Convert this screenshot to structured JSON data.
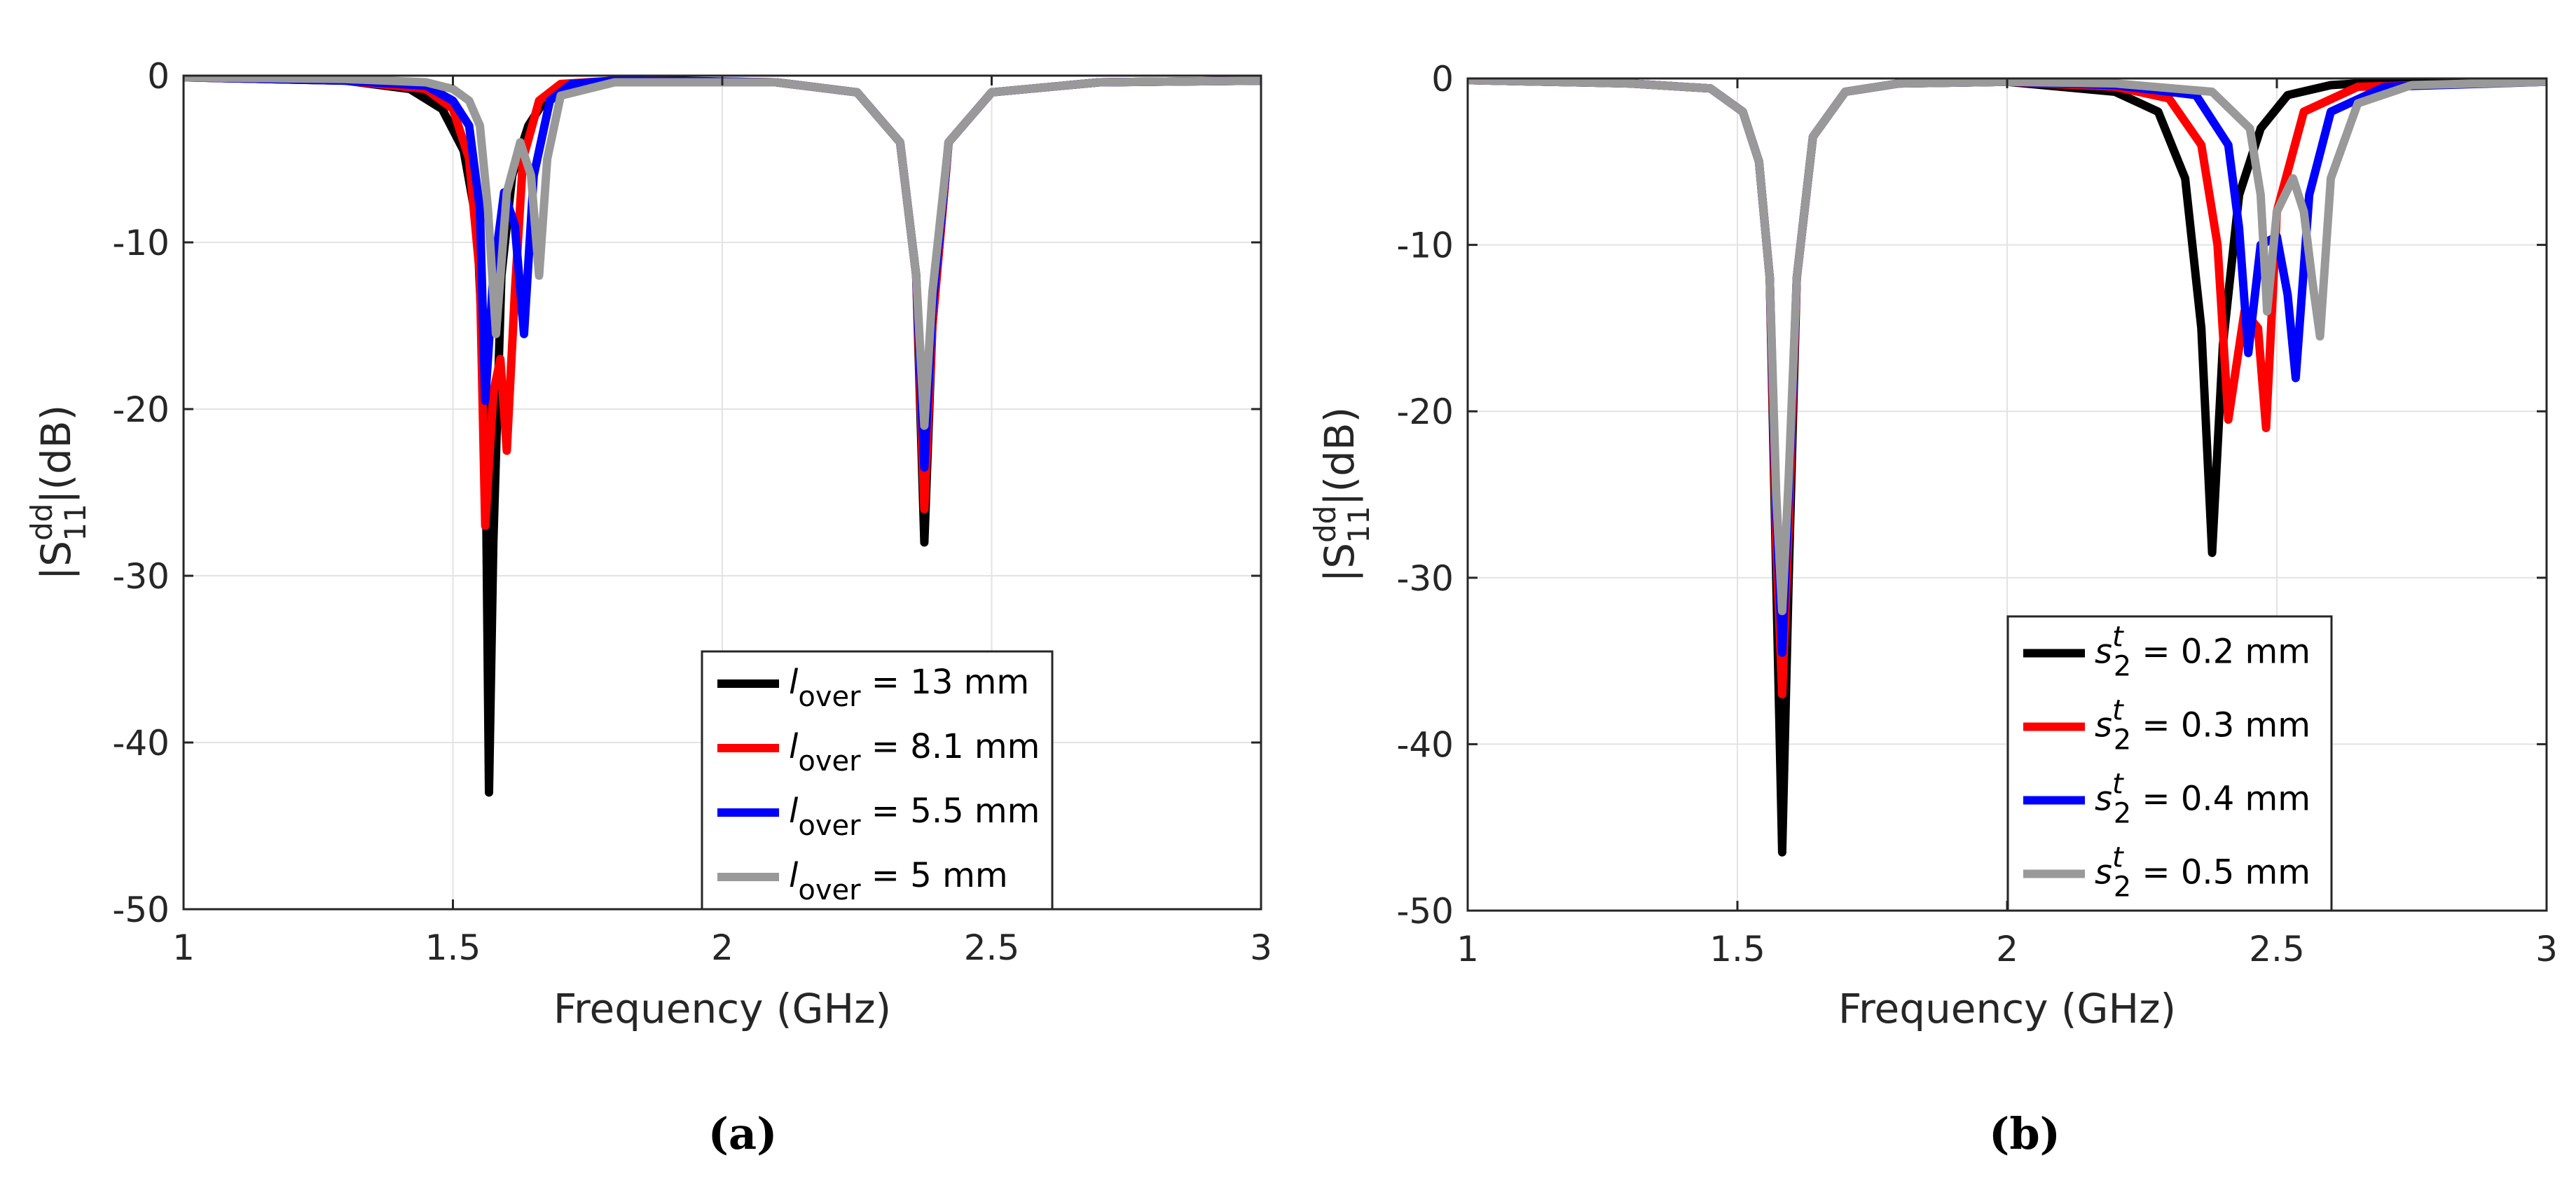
{
  "chart_data": [
    {
      "type": "line",
      "panel_label": "(a)",
      "xlabel": "Frequency (GHz)",
      "ylabel": {
        "main": "|S",
        "sup": "dd",
        "sub": "11",
        "rest": "|(dB)"
      },
      "xlim": [
        1,
        3
      ],
      "ylim": [
        -50,
        0
      ],
      "xticks": [
        1,
        1.5,
        2,
        2.5,
        3
      ],
      "xtick_labels": [
        "1",
        "1.5",
        "2",
        "2.5",
        "3"
      ],
      "yticks": [
        0,
        -10,
        -20,
        -30,
        -40,
        -50
      ],
      "ytick_labels": [
        "0",
        "-10",
        "-20",
        "-30",
        "-40",
        "-50"
      ],
      "grid": true,
      "legend_position": "lower-right",
      "series": [
        {
          "name": "l_over = 13 mm",
          "label_sym": "l",
          "label_sub": "over",
          "label_rest": " = 13 mm",
          "color": "#000000",
          "x": [
            1.0,
            1.3,
            1.42,
            1.48,
            1.52,
            1.545,
            1.56,
            1.567,
            1.575,
            1.59,
            1.61,
            1.64,
            1.68,
            1.75,
            1.9,
            2.1,
            2.25,
            2.33,
            2.36,
            2.375,
            2.39,
            2.42,
            2.5,
            2.7,
            3.0
          ],
          "y": [
            -0.1,
            -0.3,
            -0.8,
            -2.0,
            -4.5,
            -9.0,
            -20.0,
            -43.0,
            -28.0,
            -12.0,
            -6.0,
            -3.0,
            -1.0,
            -0.4,
            -0.3,
            -0.4,
            -1.0,
            -4.0,
            -12.0,
            -28.0,
            -15.0,
            -4.0,
            -1.0,
            -0.4,
            -0.3
          ]
        },
        {
          "name": "l_over = 8.1 mm",
          "label_sym": "l",
          "label_sub": "over",
          "label_rest": " = 8.1 mm",
          "color": "#ff0000",
          "x": [
            1.0,
            1.3,
            1.45,
            1.5,
            1.53,
            1.55,
            1.56,
            1.575,
            1.588,
            1.6,
            1.615,
            1.63,
            1.66,
            1.7,
            1.8,
            2.1,
            2.25,
            2.33,
            2.36,
            2.375,
            2.39,
            2.42,
            2.5,
            2.7,
            3.0
          ],
          "y": [
            -0.1,
            -0.3,
            -0.8,
            -2.0,
            -5.0,
            -12.0,
            -27.0,
            -19.0,
            -17.0,
            -22.5,
            -13.0,
            -5.0,
            -1.5,
            -0.5,
            -0.3,
            -0.4,
            -1.0,
            -4.0,
            -12.0,
            -26.0,
            -15.0,
            -4.0,
            -1.0,
            -0.4,
            -0.3
          ]
        },
        {
          "name": "l_over = 5.5 mm",
          "label_sym": "l",
          "label_sub": "over",
          "label_rest": " = 5.5 mm",
          "color": "#0000ff",
          "x": [
            1.0,
            1.3,
            1.45,
            1.5,
            1.53,
            1.55,
            1.56,
            1.575,
            1.595,
            1.615,
            1.632,
            1.65,
            1.68,
            1.72,
            1.8,
            2.1,
            2.25,
            2.33,
            2.36,
            2.375,
            2.39,
            2.42,
            2.5,
            2.7,
            3.0
          ],
          "y": [
            -0.1,
            -0.3,
            -0.6,
            -1.5,
            -3.0,
            -8.0,
            -19.5,
            -12.0,
            -7.0,
            -9.0,
            -15.5,
            -6.0,
            -1.5,
            -0.5,
            -0.3,
            -0.4,
            -1.0,
            -4.0,
            -12.0,
            -23.5,
            -14.0,
            -4.0,
            -1.0,
            -0.4,
            -0.3
          ]
        },
        {
          "name": "l_over = 5 mm",
          "label_sym": "l",
          "label_sub": "over",
          "label_rest": " = 5 mm",
          "color": "#999999",
          "x": [
            1.0,
            1.3,
            1.45,
            1.5,
            1.53,
            1.55,
            1.565,
            1.58,
            1.6,
            1.625,
            1.645,
            1.66,
            1.675,
            1.7,
            1.8,
            2.1,
            2.25,
            2.33,
            2.36,
            2.375,
            2.39,
            2.42,
            2.5,
            2.7,
            3.0
          ],
          "y": [
            -0.1,
            -0.2,
            -0.4,
            -0.8,
            -1.5,
            -3.0,
            -8.0,
            -15.5,
            -7.0,
            -4.0,
            -6.0,
            -12.0,
            -5.0,
            -1.2,
            -0.4,
            -0.4,
            -1.0,
            -4.0,
            -12.0,
            -21.0,
            -13.0,
            -4.0,
            -1.0,
            -0.4,
            -0.3
          ]
        }
      ]
    },
    {
      "type": "line",
      "panel_label": "(b)",
      "xlabel": "Frequency (GHz)",
      "ylabel": {
        "main": "|S",
        "sup": "dd",
        "sub": "11",
        "rest": "|(dB)"
      },
      "xlim": [
        1,
        3
      ],
      "ylim": [
        -50,
        0
      ],
      "xticks": [
        1,
        1.5,
        2,
        2.5,
        3
      ],
      "xtick_labels": [
        "1",
        "1.5",
        "2",
        "2.5",
        "3"
      ],
      "yticks": [
        0,
        -10,
        -20,
        -30,
        -40,
        -50
      ],
      "ytick_labels": [
        "0",
        "-10",
        "-20",
        "-30",
        "-40",
        "-50"
      ],
      "grid": true,
      "legend_position": "lower-right",
      "series": [
        {
          "name": "s2t = 0.2 mm",
          "label_sym": "s",
          "label_sup": "t",
          "label_sub": "2",
          "label_rest": " = 0.2 mm",
          "color": "#000000",
          "x": [
            1.0,
            1.3,
            1.45,
            1.51,
            1.54,
            1.56,
            1.572,
            1.583,
            1.595,
            1.61,
            1.64,
            1.7,
            1.8,
            2.0,
            2.2,
            2.28,
            2.33,
            2.36,
            2.38,
            2.4,
            2.43,
            2.47,
            2.52,
            2.6,
            2.7,
            3.0
          ],
          "y": [
            -0.1,
            -0.3,
            -0.6,
            -2.0,
            -5.0,
            -12.0,
            -30.0,
            -46.5,
            -30.0,
            -12.0,
            -3.5,
            -0.8,
            -0.3,
            -0.2,
            -0.8,
            -2.0,
            -6.0,
            -15.0,
            -28.5,
            -16.0,
            -7.0,
            -3.0,
            -1.0,
            -0.4,
            -0.2,
            -0.2
          ]
        },
        {
          "name": "s2t = 0.3 mm",
          "label_sym": "s",
          "label_sup": "t",
          "label_sub": "2",
          "label_rest": " = 0.3 mm",
          "color": "#ff0000",
          "x": [
            1.0,
            1.3,
            1.45,
            1.51,
            1.54,
            1.56,
            1.572,
            1.583,
            1.595,
            1.61,
            1.64,
            1.7,
            1.8,
            2.0,
            2.2,
            2.3,
            2.36,
            2.39,
            2.41,
            2.44,
            2.465,
            2.48,
            2.5,
            2.55,
            2.65,
            3.0
          ],
          "y": [
            -0.1,
            -0.3,
            -0.6,
            -2.0,
            -5.0,
            -12.0,
            -28.0,
            -37.0,
            -27.0,
            -12.0,
            -3.5,
            -0.8,
            -0.3,
            -0.2,
            -0.5,
            -1.2,
            -4.0,
            -10.0,
            -20.5,
            -14.0,
            -15.0,
            -21.0,
            -8.0,
            -2.0,
            -0.5,
            -0.2
          ]
        },
        {
          "name": "s2t = 0.4 mm",
          "label_sym": "s",
          "label_sup": "t",
          "label_sub": "2",
          "label_rest": " = 0.4 mm",
          "color": "#0000ff",
          "x": [
            1.0,
            1.3,
            1.45,
            1.51,
            1.54,
            1.56,
            1.572,
            1.583,
            1.595,
            1.61,
            1.64,
            1.7,
            1.8,
            2.0,
            2.2,
            2.35,
            2.41,
            2.43,
            2.447,
            2.47,
            2.5,
            2.52,
            2.535,
            2.56,
            2.6,
            2.7,
            3.0
          ],
          "y": [
            -0.1,
            -0.3,
            -0.6,
            -2.0,
            -5.0,
            -12.0,
            -26.0,
            -34.5,
            -25.0,
            -12.0,
            -3.5,
            -0.8,
            -0.3,
            -0.2,
            -0.4,
            -1.0,
            -4.0,
            -9.0,
            -16.5,
            -10.0,
            -9.5,
            -13.0,
            -18.0,
            -7.0,
            -2.0,
            -0.5,
            -0.2
          ]
        },
        {
          "name": "s2t = 0.5 mm",
          "label_sym": "s",
          "label_sup": "t",
          "label_sub": "2",
          "label_rest": " = 0.5 mm",
          "color": "#999999",
          "x": [
            1.0,
            1.3,
            1.45,
            1.51,
            1.54,
            1.56,
            1.572,
            1.583,
            1.595,
            1.61,
            1.64,
            1.7,
            1.8,
            2.0,
            2.2,
            2.38,
            2.45,
            2.47,
            2.482,
            2.5,
            2.53,
            2.55,
            2.565,
            2.58,
            2.6,
            2.65,
            2.75,
            3.0
          ],
          "y": [
            -0.1,
            -0.3,
            -0.6,
            -2.0,
            -5.0,
            -12.0,
            -25.0,
            -32.0,
            -24.0,
            -12.0,
            -3.5,
            -0.8,
            -0.3,
            -0.2,
            -0.3,
            -0.8,
            -3.0,
            -7.0,
            -14.0,
            -8.0,
            -6.0,
            -8.0,
            -12.0,
            -15.5,
            -6.0,
            -1.5,
            -0.4,
            -0.2
          ]
        }
      ]
    }
  ]
}
